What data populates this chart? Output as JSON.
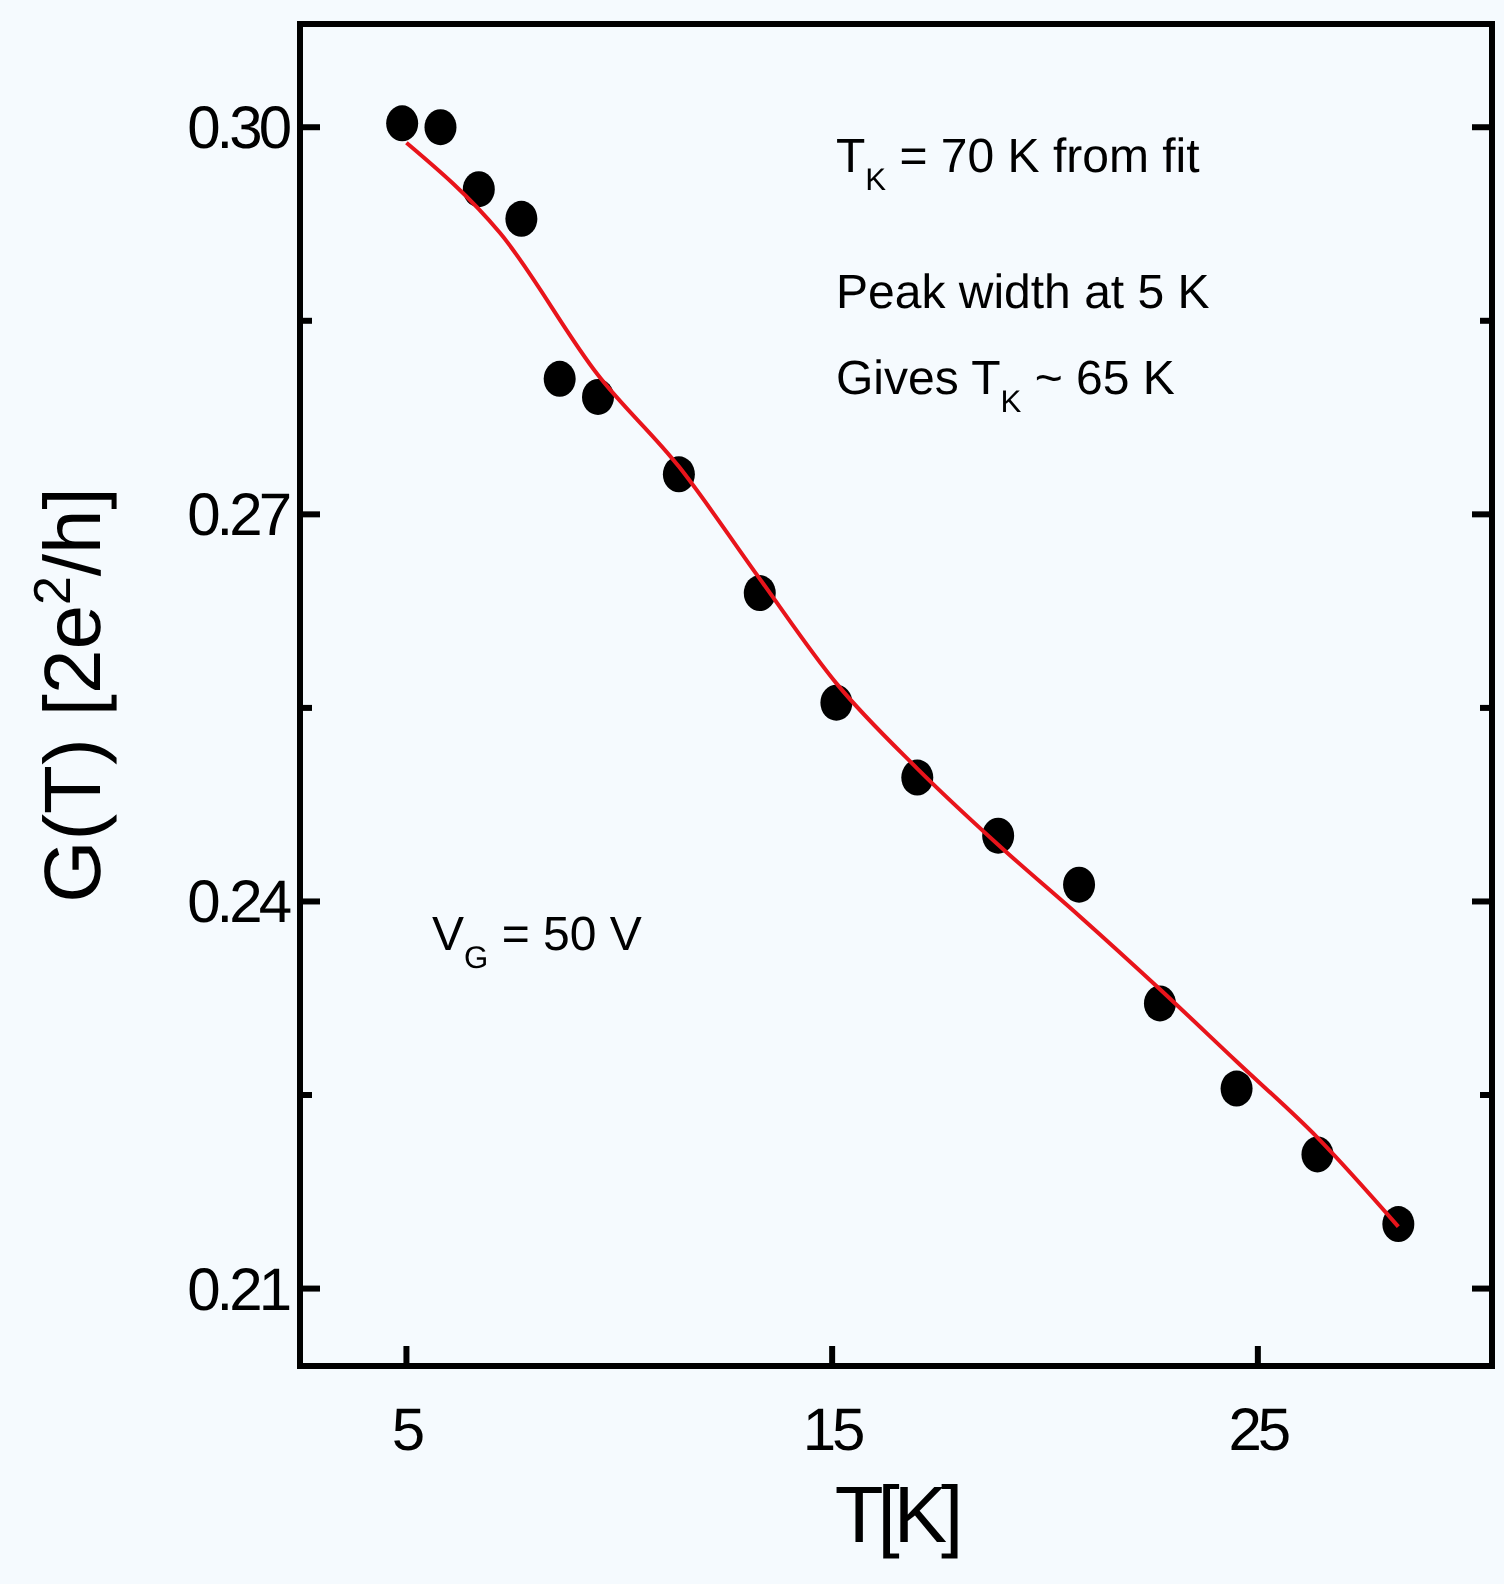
{
  "chart_data": {
    "type": "scatter",
    "xlabel": "T[K]",
    "ylabel": "G(T)  [2e$^{2}$/h]",
    "xlim": [
      2.5,
      30.5
    ],
    "ylim": [
      0.204,
      0.308
    ],
    "xticks": [
      5,
      15,
      25
    ],
    "yticks": [
      {
        "value": 0.21,
        "label": "0.21"
      },
      {
        "value": 0.24,
        "label": "0.24"
      },
      {
        "value": 0.27,
        "label": "0.27"
      },
      {
        "value": 0.3,
        "label": "0.30"
      }
    ],
    "grid": false,
    "annotations": [
      "T$_{K}$ = 70 K from fit",
      "Peak width at 5 K",
      "Gives T$_{K}$ ~ 65 K",
      "V$_{G}$ = 50 V"
    ],
    "series": [
      {
        "color": "#000000",
        "marker": "circle",
        "x": [
          4.9,
          5.8,
          6.7,
          7.7,
          8.6,
          9.5,
          11.4,
          13.3,
          15.1,
          17.0,
          18.9,
          20.8,
          22.7,
          24.5,
          26.4,
          28.3
        ],
        "values": [
          0.3003,
          0.3,
          0.2952,
          0.2929,
          0.2805,
          0.2791,
          0.2731,
          0.2639,
          0.2554,
          0.2496,
          0.2451,
          0.2413,
          0.2321,
          0.2255,
          0.2204,
          0.215
        ]
      },
      {
        "type": "line",
        "color": "#e8141b",
        "line_style": "solid",
        "x": [
          5,
          7.2,
          9.5,
          11.4,
          13.3,
          15.1,
          17.0,
          18.9,
          20.8,
          22.7,
          24.5,
          26.4,
          28.3
        ],
        "values": [
          0.2988,
          0.2918,
          0.2808,
          0.2737,
          0.265,
          0.2569,
          0.2503,
          0.2444,
          0.2389,
          0.2332,
          0.2276,
          0.2217,
          0.2148
        ]
      }
    ]
  }
}
